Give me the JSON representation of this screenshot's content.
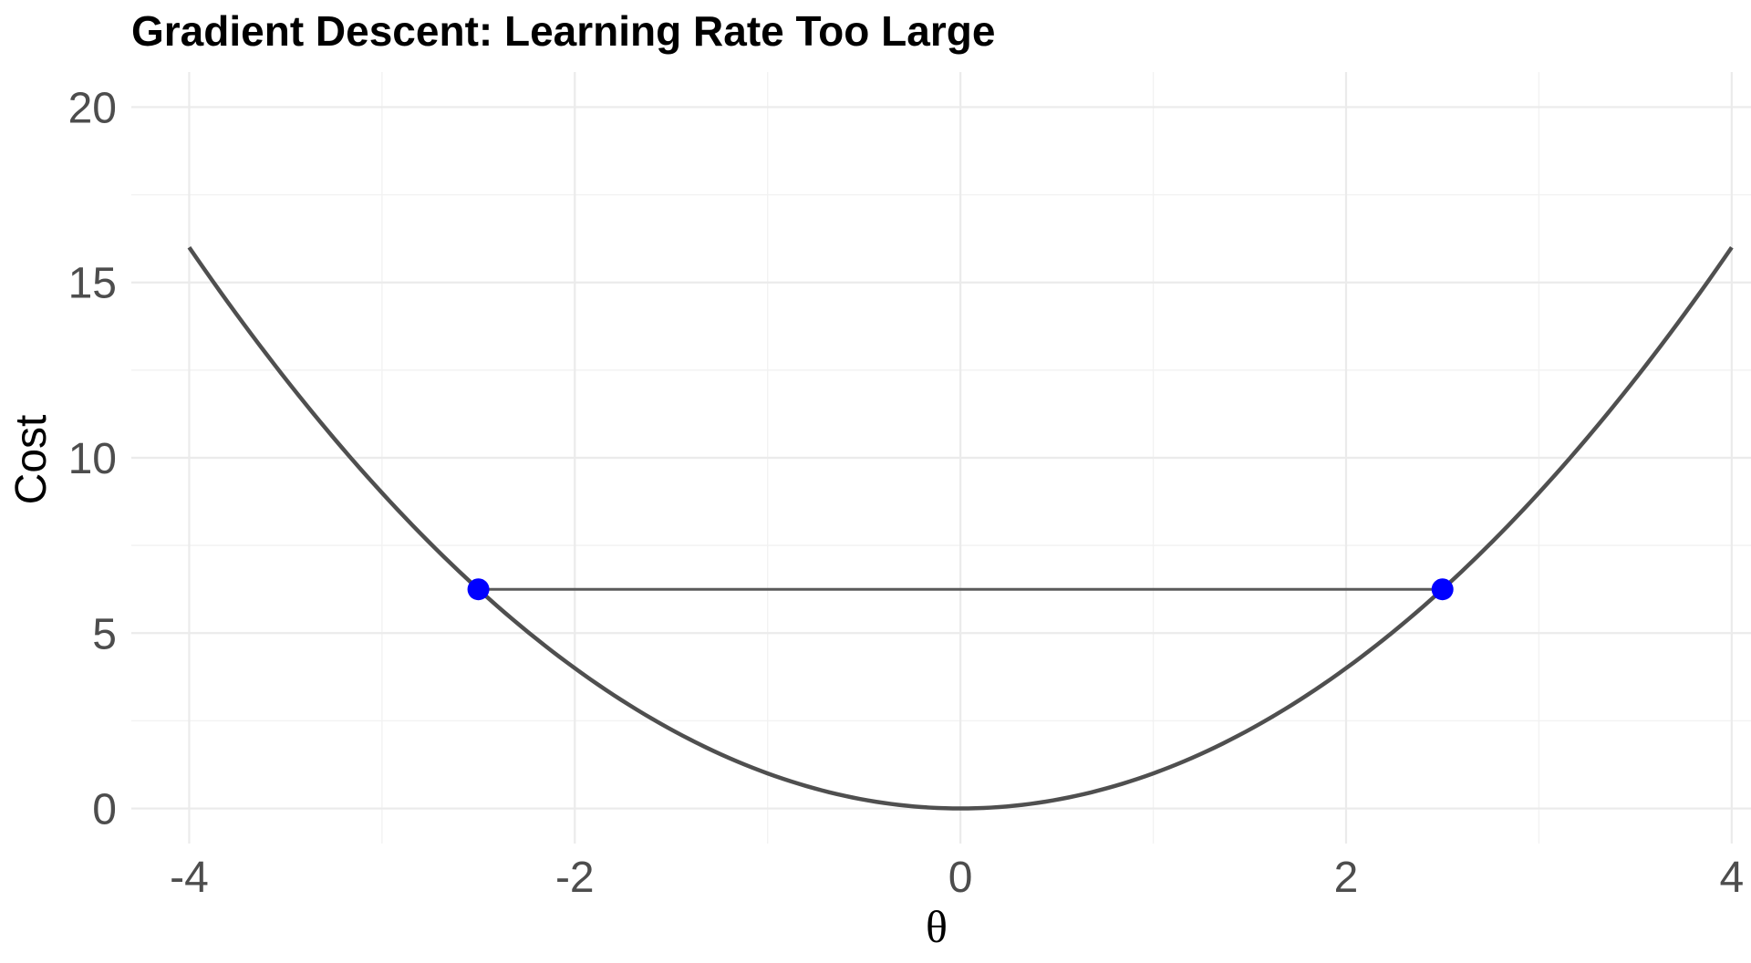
{
  "chart_data": {
    "type": "line",
    "title": "Gradient Descent: Learning Rate Too Large",
    "xlabel": "θ",
    "ylabel": "Cost",
    "xlim": [
      -4.3,
      4.1
    ],
    "ylim": [
      -1,
      21
    ],
    "x_ticks": [
      -4,
      -2,
      0,
      2,
      4
    ],
    "y_ticks": [
      0,
      5,
      10,
      15,
      20
    ],
    "grid": true,
    "series": [
      {
        "type": "line",
        "function": "theta^2",
        "x_range": [
          -4,
          4
        ],
        "color": "#4f4f4f"
      }
    ],
    "steps": [
      {
        "from": [
          -2.5,
          6.25
        ],
        "to": [
          2.5,
          6.25
        ]
      }
    ],
    "points": [
      {
        "x": -2.5,
        "y": 6.25,
        "color": "#0000ff"
      },
      {
        "x": 2.5,
        "y": 6.25,
        "color": "#0000ff"
      }
    ]
  }
}
